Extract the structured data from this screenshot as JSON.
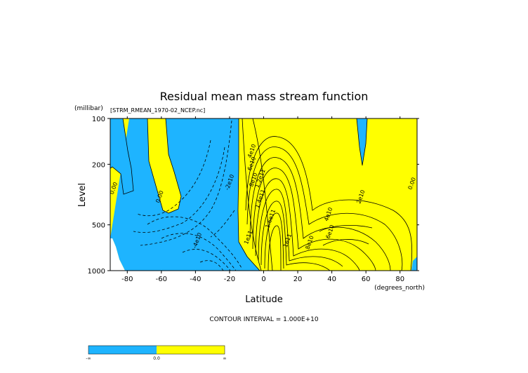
{
  "chart_data": {
    "type": "contour",
    "title": "Residual mean mass stream function",
    "dataset": "[STRM_RMEAN_1970-02_NCEP.nc]",
    "xlabel": "Latitude",
    "xunits": "(degrees_north)",
    "ylabel": "Level",
    "yunits": "(millibar)",
    "xlim": [
      -90,
      90
    ],
    "ylim": [
      1000,
      100
    ],
    "yscale": "log",
    "x_ticks": [
      -80,
      -60,
      -40,
      -20,
      0,
      20,
      40,
      60,
      80
    ],
    "y_ticks": [
      100,
      200,
      500,
      1000
    ],
    "footer": "CONTOUR INTERVAL = 1.000E+10",
    "contour_interval": 10000000000,
    "fill_colors": {
      "negative": "#1EB4FF",
      "positive": "#FFFF00"
    },
    "colorbar": {
      "labels": [
        "-∞",
        "0.0",
        "∞"
      ]
    },
    "contour_labels": [
      {
        "text": "0.00",
        "lat": -87,
        "p": 290
      },
      {
        "text": "0.00",
        "lat": -60,
        "p": 330
      },
      {
        "text": "0.00",
        "lat": 88,
        "p": 270
      },
      {
        "text": "-2e10",
        "lat": -19,
        "p": 265
      },
      {
        "text": "-4e10",
        "lat": -38,
        "p": 640
      },
      {
        "text": "4e10",
        "lat": -6,
        "p": 165
      },
      {
        "text": "6e10",
        "lat": -6,
        "p": 200
      },
      {
        "text": "8e10",
        "lat": -5,
        "p": 255
      },
      {
        "text": "1.2e11",
        "lat": -1,
        "p": 250
      },
      {
        "text": "1.4e11",
        "lat": -1,
        "p": 340
      },
      {
        "text": "1.6e11",
        "lat": 5,
        "p": 460
      },
      {
        "text": "1e11",
        "lat": -8,
        "p": 610
      },
      {
        "text": "1e11",
        "lat": 15,
        "p": 640
      },
      {
        "text": "2e10",
        "lat": 58,
        "p": 330
      },
      {
        "text": "4e10",
        "lat": 39,
        "p": 430
      },
      {
        "text": "6e10",
        "lat": 40,
        "p": 560
      },
      {
        "text": "8e10",
        "lat": 28,
        "p": 660
      }
    ]
  }
}
